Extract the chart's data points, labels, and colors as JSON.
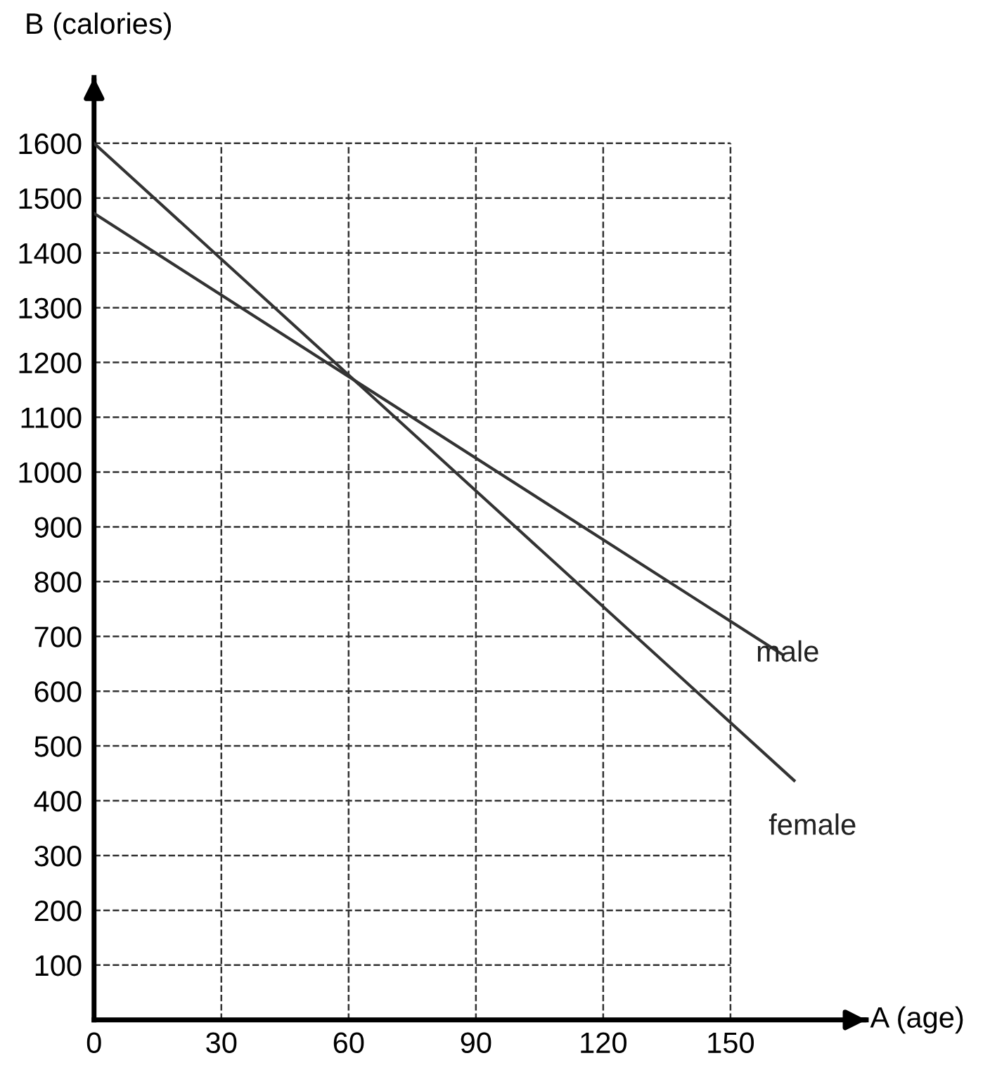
{
  "chart_data": {
    "type": "line",
    "xlabel": "A (age)",
    "ylabel": "B (calories)",
    "series": [
      {
        "name": "male",
        "color": "#333333",
        "x": [
          0,
          162
        ],
        "values": [
          1472,
          668
        ]
      },
      {
        "name": "female",
        "color": "#333333",
        "x": [
          0,
          165
        ],
        "values": [
          1600,
          437
        ]
      }
    ],
    "xlim": [
      0,
      182
    ],
    "ylim": [
      0,
      1720
    ],
    "xticks": [
      0,
      30,
      60,
      90,
      120,
      150
    ],
    "yticks": [
      100,
      200,
      300,
      400,
      500,
      600,
      700,
      800,
      900,
      1000,
      1100,
      1200,
      1300,
      1400,
      1500,
      1600
    ],
    "grid": true,
    "legend": false,
    "line_style": "solid",
    "marker": "none"
  }
}
